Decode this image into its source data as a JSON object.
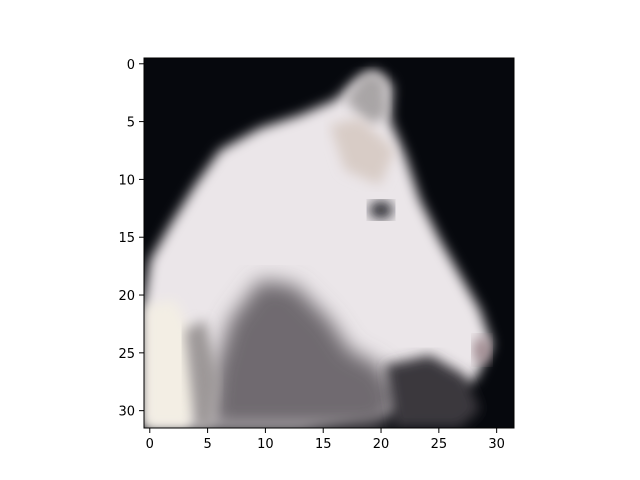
{
  "chart_data": {
    "type": "heatmap",
    "title": "",
    "xlabel": "",
    "ylabel": "",
    "xlim": [
      -0.5,
      31.5
    ],
    "ylim": [
      31.5,
      -0.5
    ],
    "grid": false,
    "x_ticks": [
      "0",
      "5",
      "10",
      "15",
      "20",
      "25",
      "30"
    ],
    "y_ticks": [
      "0",
      "5",
      "10",
      "15",
      "20",
      "25",
      "30"
    ],
    "background_color": "#06080d",
    "subject_color": "#ebe6e9",
    "shadow_color": "#6f6a70"
  }
}
